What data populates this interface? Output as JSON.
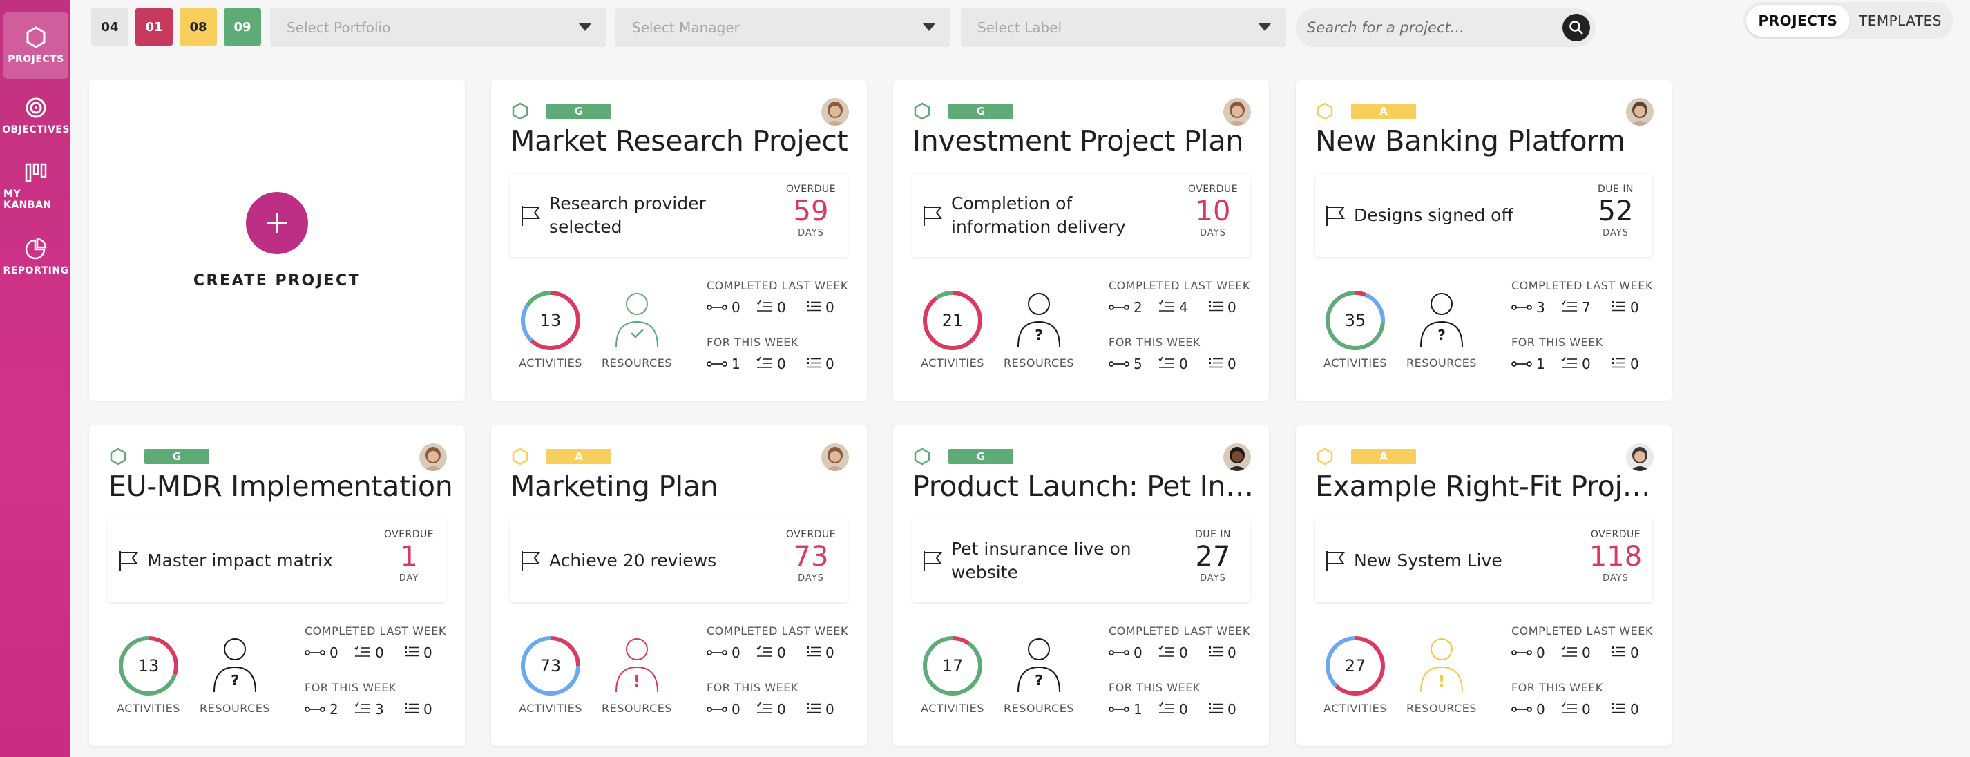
{
  "sidebar": {
    "items": [
      {
        "label": "PROJECTS",
        "icon": "hexagon-icon",
        "active": true
      },
      {
        "label": "OBJECTIVES",
        "icon": "target-icon",
        "active": false
      },
      {
        "label": "MY KANBAN",
        "icon": "kanban-icon",
        "active": false
      },
      {
        "label": "REPORTING",
        "icon": "pie-chart-icon",
        "active": false
      }
    ]
  },
  "filters": {
    "counts": {
      "grey": "04",
      "red": "01",
      "yellow": "08",
      "green": "09"
    },
    "portfolio_placeholder": "Select Portfolio",
    "manager_placeholder": "Select Manager",
    "label_placeholder": "Select Label",
    "search_placeholder": "Search for a project..."
  },
  "view_toggle": {
    "projects": "PROJECTS",
    "templates": "TEMPLATES"
  },
  "create_project": {
    "label": "CREATE PROJECT"
  },
  "stat_labels": {
    "completed_last_week": "COMPLETED LAST WEEK",
    "for_this_week": "FOR THIS WEEK",
    "activities": "ACTIVITIES",
    "resources": "RESOURCES"
  },
  "colors": {
    "accent": "#c2317f",
    "green": "#5fab78",
    "amber": "#f8cf5d",
    "red": "#d93a60",
    "blue": "#6aa8ef"
  },
  "projects": [
    {
      "rag": "G",
      "rag_color": "green",
      "title": "Market Research Project",
      "milestone": "Research provider selected",
      "due_label": "OVERDUE",
      "due_value": "59",
      "due_unit": "DAYS",
      "overdue": true,
      "activities": "13",
      "ring": {
        "red": 0.62,
        "blue": 0.22,
        "green": 0.16
      },
      "resource_status": "check",
      "last_week": [
        "0",
        "0",
        "0"
      ],
      "this_week": [
        "1",
        "0",
        "0"
      ],
      "avatar": "woman-avatar-1"
    },
    {
      "rag": "G",
      "rag_color": "green",
      "title": "Investment Project Plan",
      "milestone": "Completion of information delivery",
      "due_label": "OVERDUE",
      "due_value": "10",
      "due_unit": "DAYS",
      "overdue": true,
      "activities": "21",
      "ring": {
        "red": 0.9,
        "blue": 0.0,
        "green": 0.1
      },
      "resource_status": "question",
      "last_week": [
        "2",
        "4",
        "0"
      ],
      "this_week": [
        "5",
        "0",
        "0"
      ],
      "avatar": "woman-avatar-1"
    },
    {
      "rag": "A",
      "rag_color": "amber",
      "title": "New Banking Platform",
      "milestone": "Designs signed off",
      "due_label": "DUE IN",
      "due_value": "52",
      "due_unit": "DAYS",
      "overdue": false,
      "activities": "35",
      "ring": {
        "red": 0.06,
        "blue": 0.2,
        "green": 0.74
      },
      "resource_status": "question",
      "last_week": [
        "3",
        "7",
        "0"
      ],
      "this_week": [
        "1",
        "0",
        "0"
      ],
      "avatar": "woman-avatar-2"
    },
    {
      "rag": "G",
      "rag_color": "green",
      "title": "EU-MDR Implementation",
      "milestone": "Master impact matrix",
      "due_label": "OVERDUE",
      "due_value": "1",
      "due_unit": "DAY",
      "overdue": true,
      "activities": "13",
      "ring": {
        "red": 0.3,
        "blue": 0.0,
        "green": 0.7
      },
      "resource_status": "question",
      "last_week": [
        "0",
        "0",
        "0"
      ],
      "this_week": [
        "2",
        "3",
        "0"
      ],
      "avatar": "woman-avatar-1"
    },
    {
      "rag": "A",
      "rag_color": "amber",
      "title": "Marketing Plan",
      "milestone": "Achieve 20 reviews",
      "due_label": "OVERDUE",
      "due_value": "73",
      "due_unit": "DAYS",
      "overdue": true,
      "activities": "73",
      "ring": {
        "red": 0.25,
        "blue": 0.75,
        "green": 0.0
      },
      "resource_status": "warning",
      "last_week": [
        "0",
        "0",
        "0"
      ],
      "this_week": [
        "0",
        "0",
        "0"
      ],
      "avatar": "woman-avatar-1"
    },
    {
      "rag": "G",
      "rag_color": "green",
      "title": "Product Launch: Pet Ins...",
      "milestone": "Pet insurance live on website",
      "due_label": "DUE IN",
      "due_value": "27",
      "due_unit": "DAYS",
      "overdue": false,
      "activities": "17",
      "ring": {
        "red": 0.1,
        "blue": 0.0,
        "green": 0.9
      },
      "resource_status": "question",
      "last_week": [
        "0",
        "0",
        "0"
      ],
      "this_week": [
        "1",
        "0",
        "0"
      ],
      "avatar": "man-avatar-1"
    },
    {
      "rag": "A",
      "rag_color": "amber",
      "title": "Example Right-Fit Proje...",
      "milestone": "New System Live",
      "due_label": "OVERDUE",
      "due_value": "118",
      "due_unit": "DAYS",
      "overdue": true,
      "activities": "27",
      "ring": {
        "red": 0.62,
        "blue": 0.38,
        "green": 0.0
      },
      "resource_status": "amber-warning",
      "last_week": [
        "0",
        "0",
        "0"
      ],
      "this_week": [
        "0",
        "0",
        "0"
      ],
      "avatar": "man-avatar-2"
    }
  ]
}
